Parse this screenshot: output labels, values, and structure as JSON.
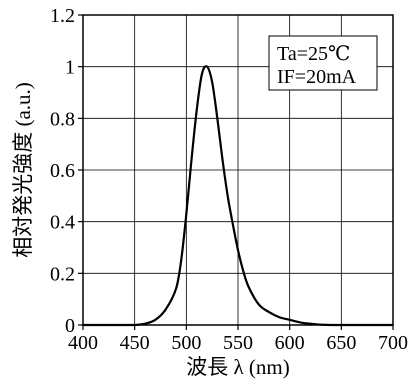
{
  "chart_data": {
    "type": "line",
    "title": "",
    "xlabel": "波長 λ (nm)",
    "ylabel": "相対発光強度 (a.u.)",
    "xlim": [
      400,
      700
    ],
    "ylim": [
      0,
      1.2
    ],
    "grid": true,
    "x_ticks": [
      400,
      450,
      500,
      550,
      600,
      650,
      700
    ],
    "y_ticks": [
      0,
      0.2,
      0.4,
      0.6,
      0.8,
      1,
      1.2
    ],
    "x_tick_labels": [
      "400",
      "450",
      "500",
      "550",
      "600",
      "650",
      "700"
    ],
    "y_tick_labels": [
      "0",
      "0.2",
      "0.4",
      "0.6",
      "0.8",
      "1",
      "1.2"
    ],
    "annotation": {
      "placement": "top-right",
      "lines": [
        "Ta=25℃",
        "IF=20mA"
      ]
    },
    "series": [
      {
        "x": [
          400,
          440,
          450,
          460,
          470,
          480,
          490,
          495,
          500,
          505,
          510,
          515,
          520,
          525,
          530,
          535,
          540,
          545,
          550,
          555,
          560,
          570,
          580,
          590,
          600,
          610,
          620,
          640,
          700
        ],
        "y": [
          0,
          0,
          0,
          0.005,
          0.02,
          0.06,
          0.14,
          0.25,
          0.43,
          0.64,
          0.83,
          0.97,
          1.0,
          0.94,
          0.8,
          0.64,
          0.5,
          0.39,
          0.29,
          0.21,
          0.15,
          0.08,
          0.05,
          0.03,
          0.02,
          0.01,
          0.005,
          0,
          0
        ]
      }
    ]
  }
}
